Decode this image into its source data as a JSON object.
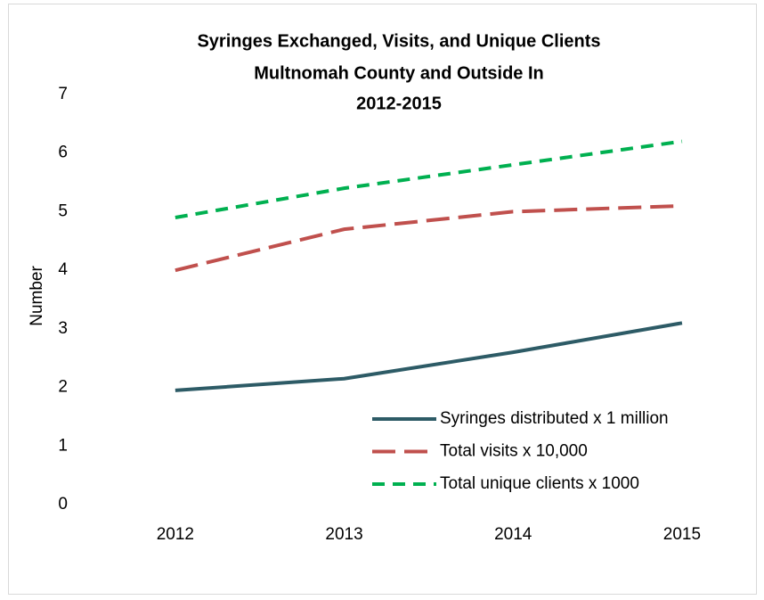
{
  "chart_data": {
    "type": "line",
    "title": [
      "Syringes Exchanged, Visits, and Unique Clients",
      "Multnomah County and Outside In",
      "2012-2015"
    ],
    "y_label": "Number",
    "categories": [
      "2012",
      "2013",
      "2014",
      "2015"
    ],
    "series": [
      {
        "name": "Syringes distributed x 1 million",
        "color": "#2d5b66",
        "dash": "solid",
        "values": [
          1.95,
          2.15,
          2.6,
          3.1
        ]
      },
      {
        "name": "Total visits x 10,000",
        "color": "#c0504d",
        "dash": "long",
        "values": [
          4.0,
          4.7,
          5.0,
          5.1
        ]
      },
      {
        "name": "Total unique clients x 1000",
        "color": "#00b050",
        "dash": "short",
        "values": [
          4.9,
          5.4,
          5.8,
          6.2
        ]
      }
    ],
    "ylim": [
      0,
      7
    ],
    "yticks": [
      0,
      1,
      2,
      3,
      4,
      5,
      6,
      7
    ],
    "grid": false,
    "legend": "lower right"
  }
}
